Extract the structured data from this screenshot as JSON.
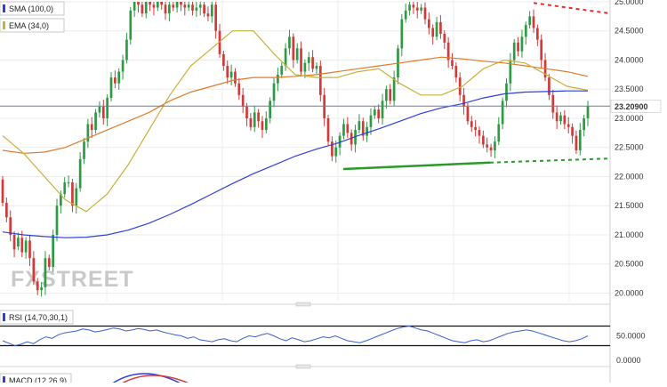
{
  "chart_data": {
    "type": "candlestick",
    "ylim": [
      19.9,
      25.0
    ],
    "y_ticks": [
      "25.0000",
      "24.5000",
      "24.0000",
      "23.5000",
      "23.0000",
      "22.5000",
      "22.0000",
      "21.5000",
      "21.0000",
      "20.5000",
      "20.0000"
    ],
    "last_price_label": "23.20900",
    "last_price": 23.209,
    "indicators": [
      {
        "label": "SMA (100,0)",
        "color": "#2f3fd6"
      },
      {
        "label": "EMA (34,0)",
        "color": "#c9b03a"
      }
    ],
    "ema_line_color": "#e07a2a",
    "candles": [
      [
        21.95,
        21.55
      ],
      [
        21.55,
        21.3
      ],
      [
        21.3,
        21.0
      ],
      [
        21.0,
        20.75
      ],
      [
        20.8,
        20.95
      ],
      [
        20.95,
        20.7
      ],
      [
        20.7,
        20.9
      ],
      [
        20.9,
        20.6
      ],
      [
        20.6,
        20.2
      ],
      [
        20.2,
        20.05
      ],
      [
        20.05,
        20.1
      ],
      [
        20.1,
        20.6
      ],
      [
        20.6,
        20.45
      ],
      [
        20.45,
        21.0
      ],
      [
        21.0,
        21.5
      ],
      [
        21.5,
        21.7
      ],
      [
        21.7,
        21.9
      ],
      [
        21.9,
        21.9
      ],
      [
        21.9,
        21.5
      ],
      [
        21.5,
        21.8
      ],
      [
        21.8,
        22.3
      ],
      [
        22.3,
        22.6
      ],
      [
        22.6,
        22.9
      ],
      [
        22.9,
        22.8
      ],
      [
        22.8,
        23.1
      ],
      [
        23.1,
        23.2
      ],
      [
        23.2,
        23.0
      ],
      [
        23.0,
        23.35
      ],
      [
        23.35,
        23.7
      ],
      [
        23.7,
        23.6
      ],
      [
        23.6,
        23.8
      ],
      [
        23.8,
        24.0
      ],
      [
        24.0,
        24.35
      ],
      [
        24.35,
        24.85
      ],
      [
        24.85,
        25.0
      ],
      [
        25.0,
        24.95
      ],
      [
        24.95,
        24.8
      ],
      [
        24.8,
        25.0
      ],
      [
        25.0,
        24.95
      ],
      [
        24.95,
        24.9
      ],
      [
        24.9,
        25.0
      ],
      [
        25.0,
        24.95
      ],
      [
        24.95,
        24.8
      ],
      [
        24.8,
        24.95
      ],
      [
        24.95,
        24.9
      ],
      [
        24.9,
        25.0
      ],
      [
        25.0,
        24.95
      ],
      [
        24.95,
        24.9
      ],
      [
        24.9,
        24.95
      ],
      [
        24.95,
        24.85
      ],
      [
        24.85,
        24.9
      ],
      [
        24.9,
        24.95
      ],
      [
        24.95,
        24.8
      ],
      [
        24.8,
        24.75
      ],
      [
        24.75,
        24.95
      ],
      [
        24.95,
        24.5
      ],
      [
        24.5,
        24.1
      ],
      [
        24.1,
        23.9
      ],
      [
        23.9,
        23.7
      ],
      [
        23.7,
        23.8
      ],
      [
        23.8,
        23.6
      ],
      [
        23.6,
        23.4
      ],
      [
        23.4,
        23.2
      ],
      [
        23.2,
        23.0
      ],
      [
        23.0,
        22.85
      ],
      [
        22.85,
        23.1
      ],
      [
        23.1,
        22.95
      ],
      [
        22.95,
        22.8
      ],
      [
        22.8,
        23.0
      ],
      [
        23.0,
        23.3
      ],
      [
        23.3,
        23.6
      ],
      [
        23.6,
        23.75
      ],
      [
        23.75,
        23.9
      ],
      [
        23.9,
        24.2
      ],
      [
        24.2,
        24.4
      ],
      [
        24.4,
        24.0
      ],
      [
        24.0,
        24.2
      ],
      [
        24.2,
        23.8
      ],
      [
        23.8,
        23.95
      ],
      [
        23.95,
        24.05
      ],
      [
        24.05,
        23.85
      ],
      [
        23.85,
        23.9
      ],
      [
        23.9,
        23.4
      ],
      [
        23.4,
        23.0
      ],
      [
        23.0,
        22.6
      ],
      [
        22.6,
        22.35
      ],
      [
        22.35,
        22.5
      ],
      [
        22.5,
        22.7
      ],
      [
        22.7,
        22.9
      ],
      [
        22.9,
        22.75
      ],
      [
        22.75,
        22.55
      ],
      [
        22.55,
        22.8
      ],
      [
        22.8,
        22.95
      ],
      [
        22.95,
        22.7
      ],
      [
        22.7,
        22.85
      ],
      [
        22.85,
        23.05
      ],
      [
        23.05,
        23.15
      ],
      [
        23.15,
        23.0
      ],
      [
        23.0,
        23.3
      ],
      [
        23.3,
        23.5
      ],
      [
        23.5,
        23.3
      ],
      [
        23.3,
        23.7
      ],
      [
        23.7,
        24.2
      ],
      [
        24.2,
        24.7
      ],
      [
        24.7,
        24.85
      ],
      [
        24.85,
        24.95
      ],
      [
        24.95,
        24.9
      ],
      [
        24.9,
        24.85
      ],
      [
        24.85,
        24.9
      ],
      [
        24.9,
        24.7
      ],
      [
        24.7,
        24.55
      ],
      [
        24.55,
        24.4
      ],
      [
        24.4,
        24.65
      ],
      [
        24.65,
        24.45
      ],
      [
        24.45,
        24.3
      ],
      [
        24.3,
        24.0
      ],
      [
        24.0,
        23.9
      ],
      [
        23.9,
        23.7
      ],
      [
        23.7,
        23.4
      ],
      [
        23.4,
        23.2
      ],
      [
        23.2,
        22.95
      ],
      [
        22.95,
        22.85
      ],
      [
        22.85,
        22.8
      ],
      [
        22.8,
        22.7
      ],
      [
        22.7,
        22.55
      ],
      [
        22.55,
        22.5
      ],
      [
        22.5,
        22.45
      ],
      [
        22.45,
        22.6
      ],
      [
        22.6,
        22.9
      ],
      [
        22.9,
        23.3
      ],
      [
        23.3,
        23.6
      ],
      [
        23.6,
        24.0
      ],
      [
        24.0,
        24.3
      ],
      [
        24.3,
        24.15
      ],
      [
        24.15,
        24.4
      ],
      [
        24.4,
        24.6
      ],
      [
        24.6,
        24.75
      ],
      [
        24.75,
        24.55
      ],
      [
        24.55,
        24.35
      ],
      [
        24.35,
        24.0
      ],
      [
        24.0,
        23.7
      ],
      [
        23.7,
        23.4
      ],
      [
        23.4,
        23.1
      ],
      [
        23.1,
        22.95
      ],
      [
        22.95,
        23.05
      ],
      [
        23.05,
        22.9
      ],
      [
        22.9,
        22.85
      ],
      [
        22.85,
        22.7
      ],
      [
        22.7,
        22.45
      ],
      [
        22.45,
        22.8
      ],
      [
        22.8,
        23.0
      ],
      [
        23.0,
        23.21
      ]
    ],
    "sma100": [
      21.05,
      21.0,
      20.97,
      20.95,
      20.96,
      21.0,
      21.08,
      21.2,
      21.35,
      21.52,
      21.7,
      21.88,
      22.05,
      22.2,
      22.35,
      22.47,
      22.57,
      22.7,
      22.82,
      22.95,
      23.08,
      23.18,
      23.25,
      23.35,
      23.42,
      23.45,
      23.46,
      23.47,
      23.47
    ],
    "ema34": [
      22.7,
      22.4,
      22.0,
      21.6,
      21.4,
      21.7,
      22.2,
      22.8,
      23.4,
      23.9,
      24.2,
      24.5,
      24.5,
      24.1,
      23.75,
      23.7,
      23.7,
      23.8,
      23.85,
      23.6,
      23.4,
      23.4,
      23.55,
      23.85,
      24.0,
      23.95,
      23.75,
      23.55,
      23.48
    ],
    "ema_orange": [
      22.45,
      22.4,
      22.42,
      22.5,
      22.65,
      22.8,
      22.95,
      23.1,
      23.3,
      23.45,
      23.55,
      23.65,
      23.7,
      23.7,
      23.72,
      23.75,
      23.8,
      23.85,
      23.9,
      23.95,
      24.0,
      24.05,
      24.02,
      23.98,
      23.95,
      23.9,
      23.85,
      23.8,
      23.72
    ],
    "support_line": [
      [
        22.13
      ],
      [
        22.24
      ]
    ],
    "support_projection": [
      [
        22.24
      ],
      [
        22.31
      ]
    ],
    "resistance_projection": [
      [
        24.98
      ],
      [
        24.8
      ]
    ],
    "rsi": {
      "label": "RSI (14,70,30,1)",
      "ticks": [
        "50.0000",
        "0.0000"
      ],
      "upper": 70,
      "lower": 30,
      "values": [
        40,
        35,
        30,
        33,
        38,
        34,
        42,
        48,
        45,
        52,
        56,
        58,
        60,
        64,
        62,
        58,
        60,
        63,
        66,
        64,
        60,
        62,
        65,
        63,
        60,
        62,
        58,
        55,
        52,
        50,
        45,
        48,
        42,
        40,
        38,
        42,
        44,
        40,
        38,
        45,
        50,
        48,
        52,
        55,
        50,
        44,
        40,
        46,
        42,
        38,
        40,
        44,
        48,
        46,
        50,
        45,
        40,
        38,
        36,
        40,
        45,
        50,
        55,
        60,
        65,
        68,
        70,
        66,
        62,
        60,
        55,
        50,
        45,
        40,
        38,
        36,
        40,
        42,
        38,
        40,
        45,
        50,
        55,
        58,
        60,
        62,
        60,
        56,
        52,
        48,
        44,
        40,
        38,
        40,
        44,
        50
      ]
    },
    "macd": {
      "label": "MACD (12,26,9)"
    },
    "watermark": "FXSTREET"
  }
}
